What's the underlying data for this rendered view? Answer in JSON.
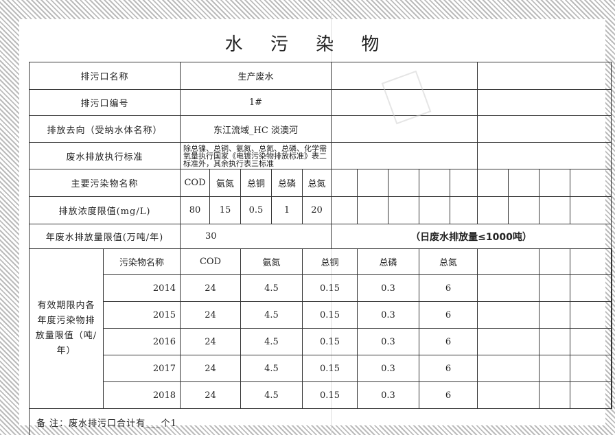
{
  "title": "水 污 染 物",
  "rows": {
    "outlet_name": {
      "label": "排污口名称",
      "value": "生产废水"
    },
    "outlet_no": {
      "label": "排污口编号",
      "value": "1#"
    },
    "destination": {
      "label": "排放去向（受纳水体名称）",
      "value": "东江流域_HC 淡澳河"
    },
    "standard": {
      "label": "废水排放执行标准",
      "value": "除总镍、总铜、氨氮、总氮、总磷、化学需氧量执行国家《电镀污染物排放标准》表二标准外，其余执行表三标准"
    },
    "pollutants": {
      "label": "主要污染物名称",
      "items": [
        "COD",
        "氨氮",
        "总铜",
        "总磷",
        "总氮"
      ]
    },
    "concentration": {
      "label": "排放浓度限值(mg/L)",
      "items": [
        "80",
        "15",
        "0.5",
        "1",
        "20"
      ]
    },
    "annual_limit": {
      "label": "年废水排放量限值(万吨/年)",
      "value": "30",
      "daily": "（日废水排放量≤1000吨）"
    }
  },
  "yearly": {
    "section_label": "有效期限内各年度污染物排放量限值（吨/年）",
    "header": [
      "污染物名称",
      "COD",
      "氨氮",
      "总铜",
      "总磷",
      "总氮"
    ],
    "years": [
      {
        "year": "2014",
        "values": [
          "24",
          "4.5",
          "0.15",
          "0.3",
          "6"
        ]
      },
      {
        "year": "2015",
        "values": [
          "24",
          "4.5",
          "0.15",
          "0.3",
          "6"
        ]
      },
      {
        "year": "2016",
        "values": [
          "24",
          "4.5",
          "0.15",
          "0.3",
          "6"
        ]
      },
      {
        "year": "2017",
        "values": [
          "24",
          "4.5",
          "0.15",
          "0.3",
          "6"
        ]
      },
      {
        "year": "2018",
        "values": [
          "24",
          "4.5",
          "0.15",
          "0.3",
          "6"
        ]
      }
    ]
  },
  "note": "备 注：废水排污口合计有___个1"
}
